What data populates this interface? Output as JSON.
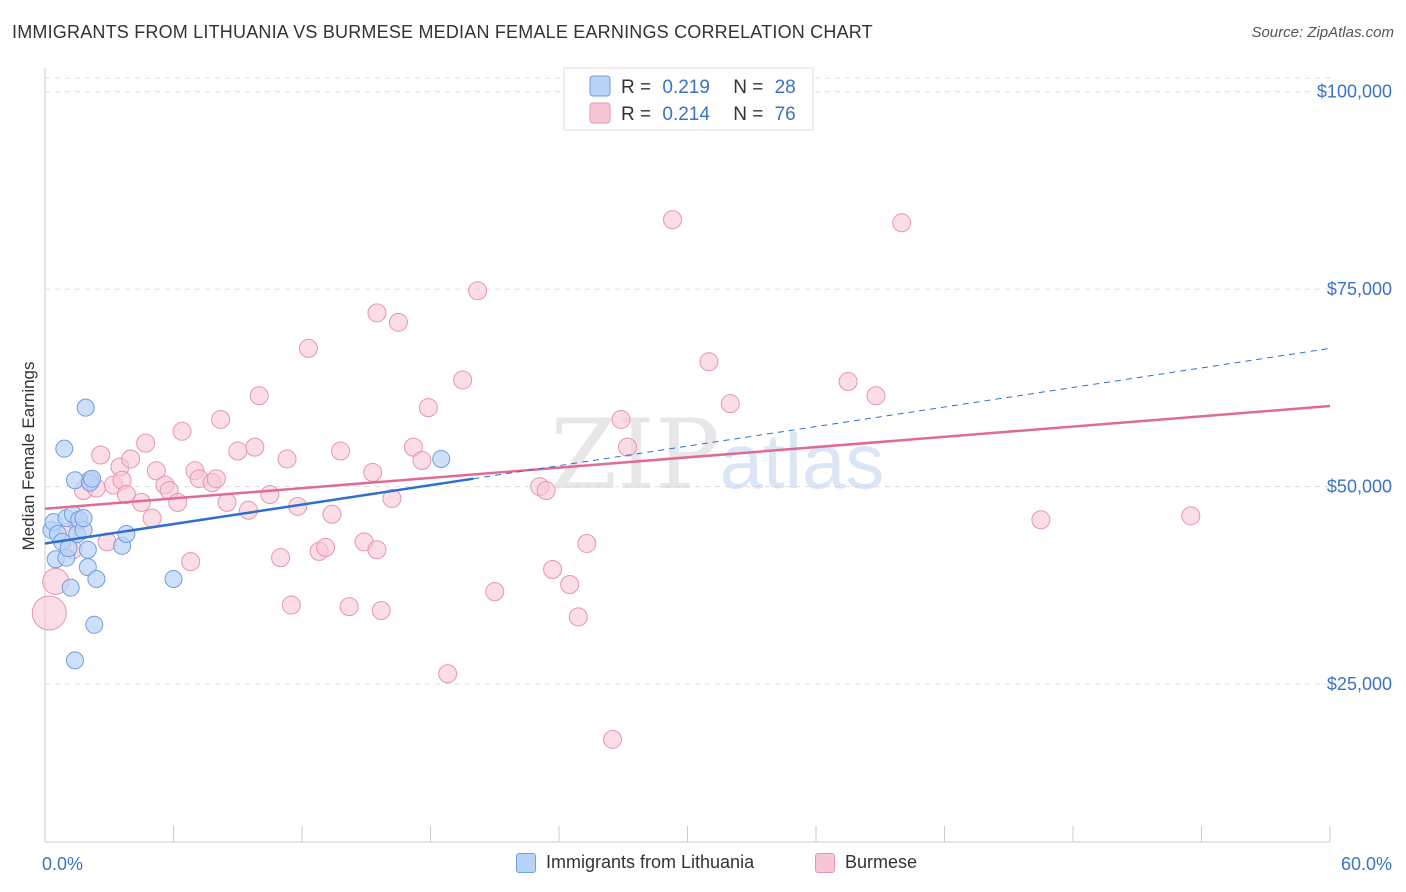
{
  "title": "IMMIGRANTS FROM LITHUANIA VS BURMESE MEDIAN FEMALE EARNINGS CORRELATION CHART",
  "source": "Source: ZipAtlas.com",
  "watermark": {
    "zip": "ZIP",
    "atlas": "atlas"
  },
  "colors": {
    "lithuania_fill": "#b9d3f7",
    "lithuania_stroke": "#6f9fdf",
    "lithuania_line": "#2f6fd0",
    "burmese_fill": "#f8c7d6",
    "burmese_stroke": "#e695b0",
    "burmese_line": "#e06b92",
    "axis_label": "#3a73c4",
    "grid": "#dddddd"
  },
  "chart_data": {
    "type": "scatter",
    "title": "IMMIGRANTS FROM LITHUANIA VS BURMESE MEDIAN FEMALE EARNINGS CORRELATION CHART",
    "xlabel": "",
    "ylabel": "Median Female Earnings",
    "xlim": [
      0,
      60
    ],
    "ylim": [
      5000,
      103000
    ],
    "x_tick_labels": [
      "0.0%",
      "60.0%"
    ],
    "y_ticks": [
      25000,
      50000,
      75000,
      100000
    ],
    "y_tick_labels": [
      "$25,000",
      "$50,000",
      "$75,000",
      "$100,000"
    ],
    "grid": true,
    "legend": {
      "placement": "top-center",
      "entries": [
        {
          "r_label": "R =",
          "r_value": "0.219",
          "n_label": "N =",
          "n_value": "28"
        },
        {
          "r_label": "R =",
          "r_value": "0.214",
          "n_label": "N =",
          "n_value": "76"
        }
      ]
    },
    "bottom_legend": [
      "Immigrants from Lithuania",
      "Burmese"
    ],
    "series": [
      {
        "name": "Immigrants from Lithuania",
        "trend": {
          "x0": 0,
          "y0": 42800,
          "x1": 20,
          "y1": 51000,
          "dash_x1": 60,
          "dash_y1": 67500
        },
        "points": [
          [
            0.3,
            44500
          ],
          [
            0.4,
            45500
          ],
          [
            0.5,
            40800
          ],
          [
            0.6,
            44000
          ],
          [
            0.8,
            43000
          ],
          [
            0.9,
            54800
          ],
          [
            1.0,
            46000
          ],
          [
            1.0,
            41000
          ],
          [
            1.1,
            42200
          ],
          [
            1.2,
            37200
          ],
          [
            1.3,
            46500
          ],
          [
            1.4,
            28000
          ],
          [
            1.4,
            50800
          ],
          [
            1.5,
            44000
          ],
          [
            1.6,
            45800
          ],
          [
            1.8,
            44500
          ],
          [
            1.8,
            46000
          ],
          [
            1.9,
            60000
          ],
          [
            2.0,
            42000
          ],
          [
            2.0,
            39800
          ],
          [
            2.1,
            50500
          ],
          [
            2.2,
            51000
          ],
          [
            2.3,
            32500
          ],
          [
            2.4,
            38300
          ],
          [
            3.6,
            42500
          ],
          [
            3.8,
            44000
          ],
          [
            6.0,
            38300
          ],
          [
            18.5,
            53500
          ]
        ]
      },
      {
        "name": "Burmese",
        "trend": {
          "x0": 0,
          "y0": 47200,
          "x1": 60,
          "y1": 60200
        },
        "points": [
          [
            0.2,
            34000
          ],
          [
            0.5,
            38000
          ],
          [
            1.0,
            44200
          ],
          [
            1.3,
            42000
          ],
          [
            1.5,
            45500
          ],
          [
            1.8,
            49500
          ],
          [
            2.1,
            50800
          ],
          [
            2.4,
            49800
          ],
          [
            2.6,
            54000
          ],
          [
            2.9,
            43000
          ],
          [
            3.2,
            50200
          ],
          [
            3.5,
            52500
          ],
          [
            3.6,
            50800
          ],
          [
            3.8,
            49000
          ],
          [
            4.0,
            53500
          ],
          [
            4.5,
            48000
          ],
          [
            4.7,
            55500
          ],
          [
            5.0,
            46000
          ],
          [
            5.2,
            52000
          ],
          [
            5.6,
            50200
          ],
          [
            5.8,
            49500
          ],
          [
            6.2,
            48000
          ],
          [
            6.4,
            57000
          ],
          [
            6.8,
            40500
          ],
          [
            7.0,
            52000
          ],
          [
            7.2,
            51000
          ],
          [
            7.8,
            50500
          ],
          [
            8.0,
            51000
          ],
          [
            8.2,
            58500
          ],
          [
            8.5,
            48000
          ],
          [
            9.0,
            54500
          ],
          [
            9.5,
            47000
          ],
          [
            9.8,
            55000
          ],
          [
            10.0,
            61500
          ],
          [
            11.0,
            41000
          ],
          [
            11.3,
            53500
          ],
          [
            11.5,
            35000
          ],
          [
            11.8,
            47500
          ],
          [
            12.3,
            67500
          ],
          [
            12.8,
            41800
          ],
          [
            13.1,
            42300
          ],
          [
            13.4,
            46500
          ],
          [
            13.8,
            54500
          ],
          [
            14.2,
            34800
          ],
          [
            14.9,
            43000
          ],
          [
            15.3,
            51800
          ],
          [
            15.5,
            72000
          ],
          [
            15.7,
            34300
          ],
          [
            16.2,
            48500
          ],
          [
            16.5,
            70800
          ],
          [
            17.2,
            55000
          ],
          [
            17.6,
            53300
          ],
          [
            17.9,
            60000
          ],
          [
            18.8,
            26300
          ],
          [
            19.5,
            63500
          ],
          [
            20.2,
            74800
          ],
          [
            21.0,
            36700
          ],
          [
            23.1,
            50000
          ],
          [
            23.4,
            49500
          ],
          [
            23.7,
            39500
          ],
          [
            24.5,
            37600
          ],
          [
            24.9,
            33500
          ],
          [
            25.3,
            42800
          ],
          [
            26.5,
            18000
          ],
          [
            26.9,
            58500
          ],
          [
            27.2,
            55000
          ],
          [
            29.3,
            83800
          ],
          [
            31.0,
            65800
          ],
          [
            32.0,
            60500
          ],
          [
            37.5,
            63300
          ],
          [
            38.8,
            61500
          ],
          [
            40.0,
            83400
          ],
          [
            46.5,
            45800
          ],
          [
            53.5,
            46300
          ],
          [
            15.5,
            42000
          ],
          [
            10.5,
            49000
          ]
        ]
      }
    ]
  }
}
